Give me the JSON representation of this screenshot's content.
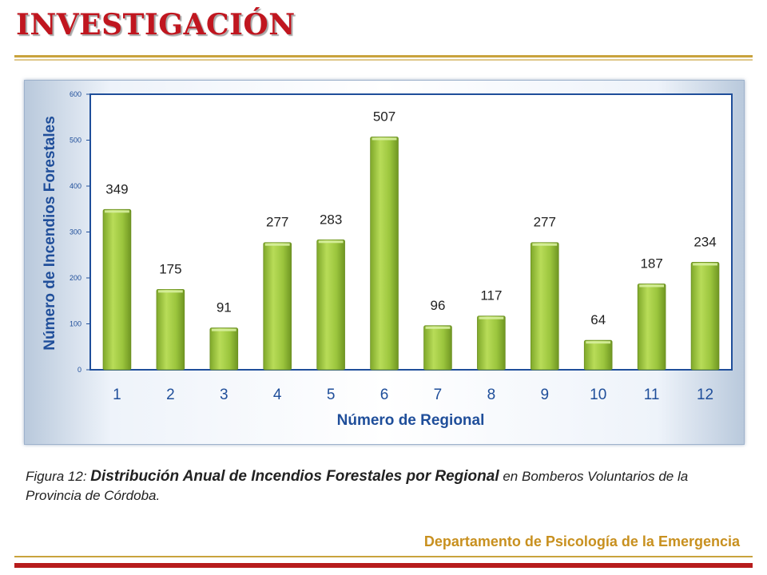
{
  "slide": {
    "title": "INVESTIGACIÓN",
    "footer": "Departamento de Psicología de la Emergencia"
  },
  "caption": {
    "prefix": "Figura 12:",
    "main": "Distribución Anual de  Incendios Forestales por Regional",
    "suffix": "en Bomberos Voluntarios de la Provincia de Córdoba."
  },
  "colors": {
    "title_red": "#c0161f",
    "bar_green": "#9bc53d",
    "axis_blue": "#1f4e9a",
    "footer_gold": "#c8901f",
    "rule_gold": "#c9a33d"
  },
  "chart_data": {
    "type": "bar",
    "categories": [
      "1",
      "2",
      "3",
      "4",
      "5",
      "6",
      "7",
      "8",
      "9",
      "10",
      "11",
      "12"
    ],
    "values": [
      349,
      175,
      91,
      277,
      283,
      507,
      96,
      117,
      277,
      64,
      187,
      234
    ],
    "data_labels": [
      "349",
      "175",
      "91",
      "277",
      "283",
      "507",
      "96",
      "117",
      "277",
      "64",
      "187",
      "234"
    ],
    "xlabel": "Número de Regional",
    "ylabel": "Número de Incendios Forestales",
    "ylim": [
      0,
      600
    ],
    "yticks": [
      0,
      100,
      200,
      300,
      400,
      500,
      600
    ],
    "ytick_labels": [
      "0",
      "100",
      "200",
      "300",
      "400",
      "500",
      "600"
    ],
    "grid": false,
    "legend": "none"
  }
}
